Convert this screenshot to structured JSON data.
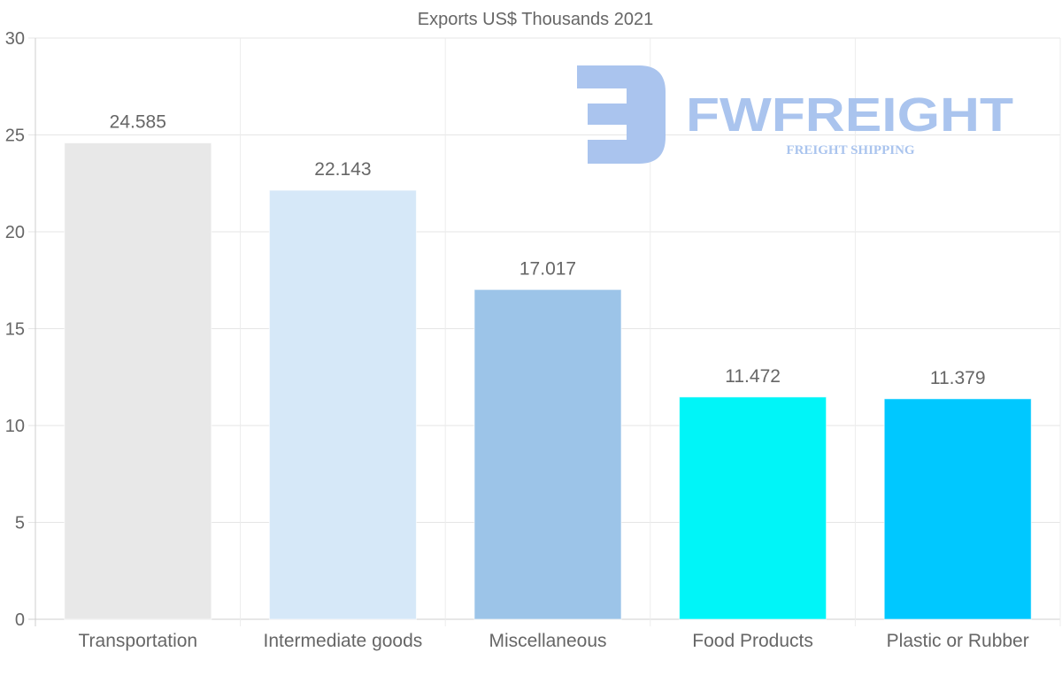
{
  "chart_data": {
    "type": "bar",
    "title": "Exports US$ Thousands 2021",
    "categories": [
      "Transportation",
      "Intermediate goods",
      "Miscellaneous",
      "Food Products",
      "Plastic or Rubber"
    ],
    "values": [
      24.585,
      22.143,
      17.017,
      11.472,
      11.379
    ],
    "value_labels": [
      "24.585",
      "22.143",
      "17.017",
      "11.472",
      "11.379"
    ],
    "colors": [
      "#e8e8e8",
      "#d6e8f8",
      "#9cc4e8",
      "#00f5f8",
      "#00c8ff"
    ],
    "ylim": [
      0,
      30
    ],
    "yticks": [
      0,
      5,
      10,
      15,
      20,
      25,
      30
    ],
    "xlabel": "",
    "ylabel": "",
    "grid": true
  },
  "watermark": {
    "brand": "FWFREIGHT",
    "tagline": "FREIGHT SHIPPING",
    "color": "#aac4ee"
  }
}
